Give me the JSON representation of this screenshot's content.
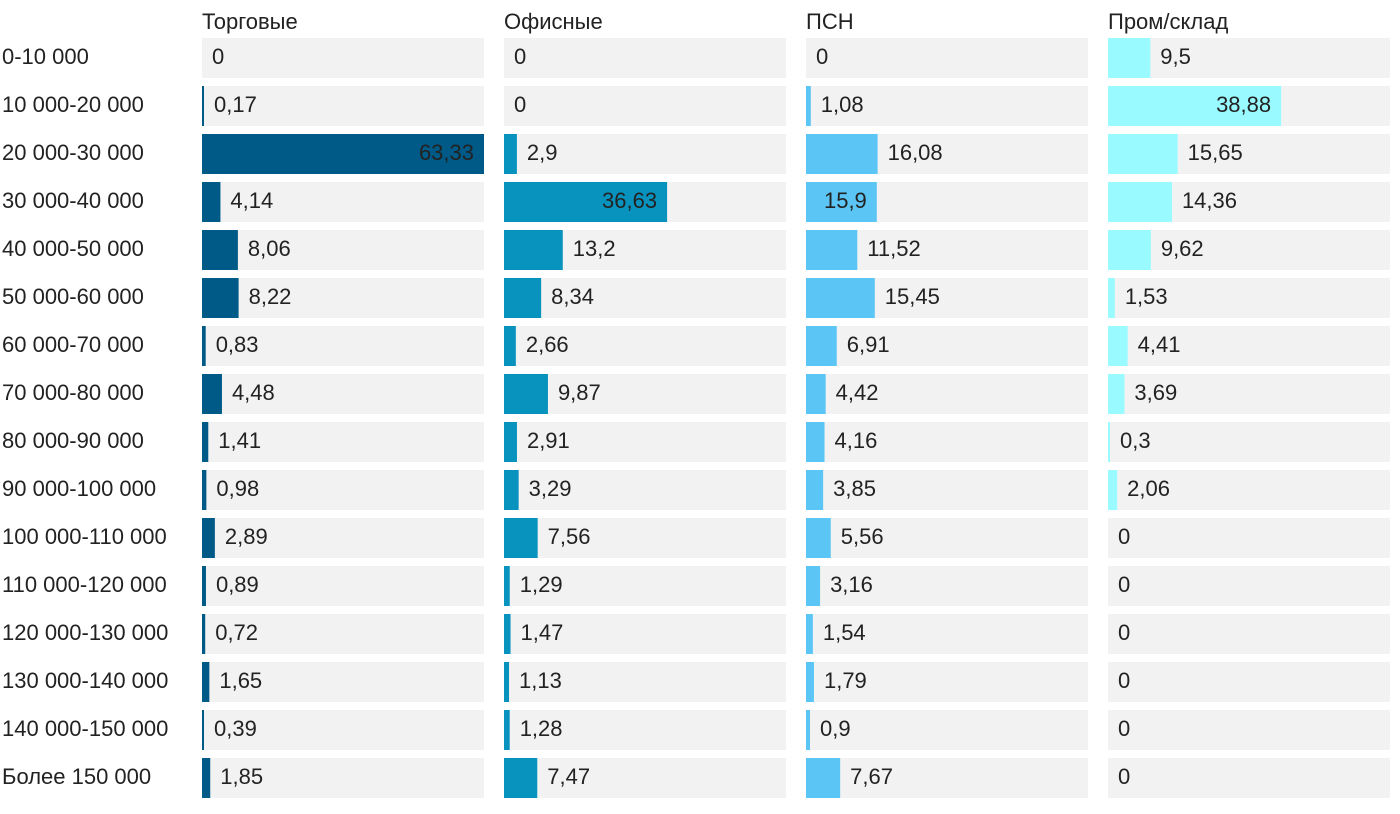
{
  "chart_data": {
    "type": "bar",
    "orientation": "horizontal",
    "layout": "small-multiples",
    "value_labels": true,
    "categories": [
      "0-10 000",
      "10 000-20 000",
      "20 000-30 000",
      "30 000-40 000",
      "40 000-50 000",
      "50 000-60 000",
      "60 000-70 000",
      "70 000-80 000",
      "80 000-90 000",
      "90 000-100 000",
      "100 000-110 000",
      "110 000-120 000",
      "120 000-130 000",
      "130 000-140 000",
      "140 000-150 000",
      "Более 150 000"
    ],
    "background_track_color": "#f2f2f2",
    "label_light_color": "#ffffff",
    "label_dark_color": "#222222",
    "series": [
      {
        "name": "Торговые",
        "color": "#005a87",
        "values": [
          0,
          0.17,
          63.33,
          4.14,
          8.06,
          8.22,
          0.83,
          4.48,
          1.41,
          0.98,
          2.89,
          0.89,
          0.72,
          1.65,
          0.39,
          1.85
        ],
        "labels": [
          "0",
          "0,17",
          "63,33",
          "4,14",
          "8,06",
          "8,22",
          "0,83",
          "4,48",
          "1,41",
          "0,98",
          "2,89",
          "0,89",
          "0,72",
          "1,65",
          "0,39",
          "1,85"
        ]
      },
      {
        "name": "Офисные",
        "color": "#0893bf",
        "values": [
          0,
          0,
          2.9,
          36.63,
          13.2,
          8.34,
          2.66,
          9.87,
          2.91,
          3.29,
          7.56,
          1.29,
          1.47,
          1.13,
          1.28,
          7.47
        ],
        "labels": [
          "0",
          "0",
          "2,9",
          "36,63",
          "13,2",
          "8,34",
          "2,66",
          "9,87",
          "2,91",
          "3,29",
          "7,56",
          "1,29",
          "1,47",
          "1,13",
          "1,28",
          "7,47"
        ]
      },
      {
        "name": "ПСН",
        "color": "#5bc6f5",
        "values": [
          0,
          1.08,
          16.08,
          15.9,
          11.52,
          15.45,
          6.91,
          4.42,
          4.16,
          3.85,
          5.56,
          3.16,
          1.54,
          1.79,
          0.9,
          7.67
        ],
        "labels": [
          "0",
          "1,08",
          "16,08",
          "15,9",
          "11,52",
          "15,45",
          "6,91",
          "4,42",
          "4,16",
          "3,85",
          "5,56",
          "3,16",
          "1,54",
          "1,79",
          "0,9",
          "7,67"
        ]
      },
      {
        "name": "Пром/склад",
        "color": "#99fbff",
        "values": [
          9.5,
          38.88,
          15.65,
          14.36,
          9.62,
          1.53,
          4.41,
          3.69,
          0.3,
          2.06,
          0,
          0,
          0,
          0,
          0,
          0
        ],
        "labels": [
          "9,5",
          "38,88",
          "15,65",
          "14,36",
          "9,62",
          "1,53",
          "4,41",
          "3,69",
          "0,3",
          "2,06",
          "0",
          "0",
          "0",
          "0",
          "0",
          "0"
        ]
      }
    ]
  }
}
